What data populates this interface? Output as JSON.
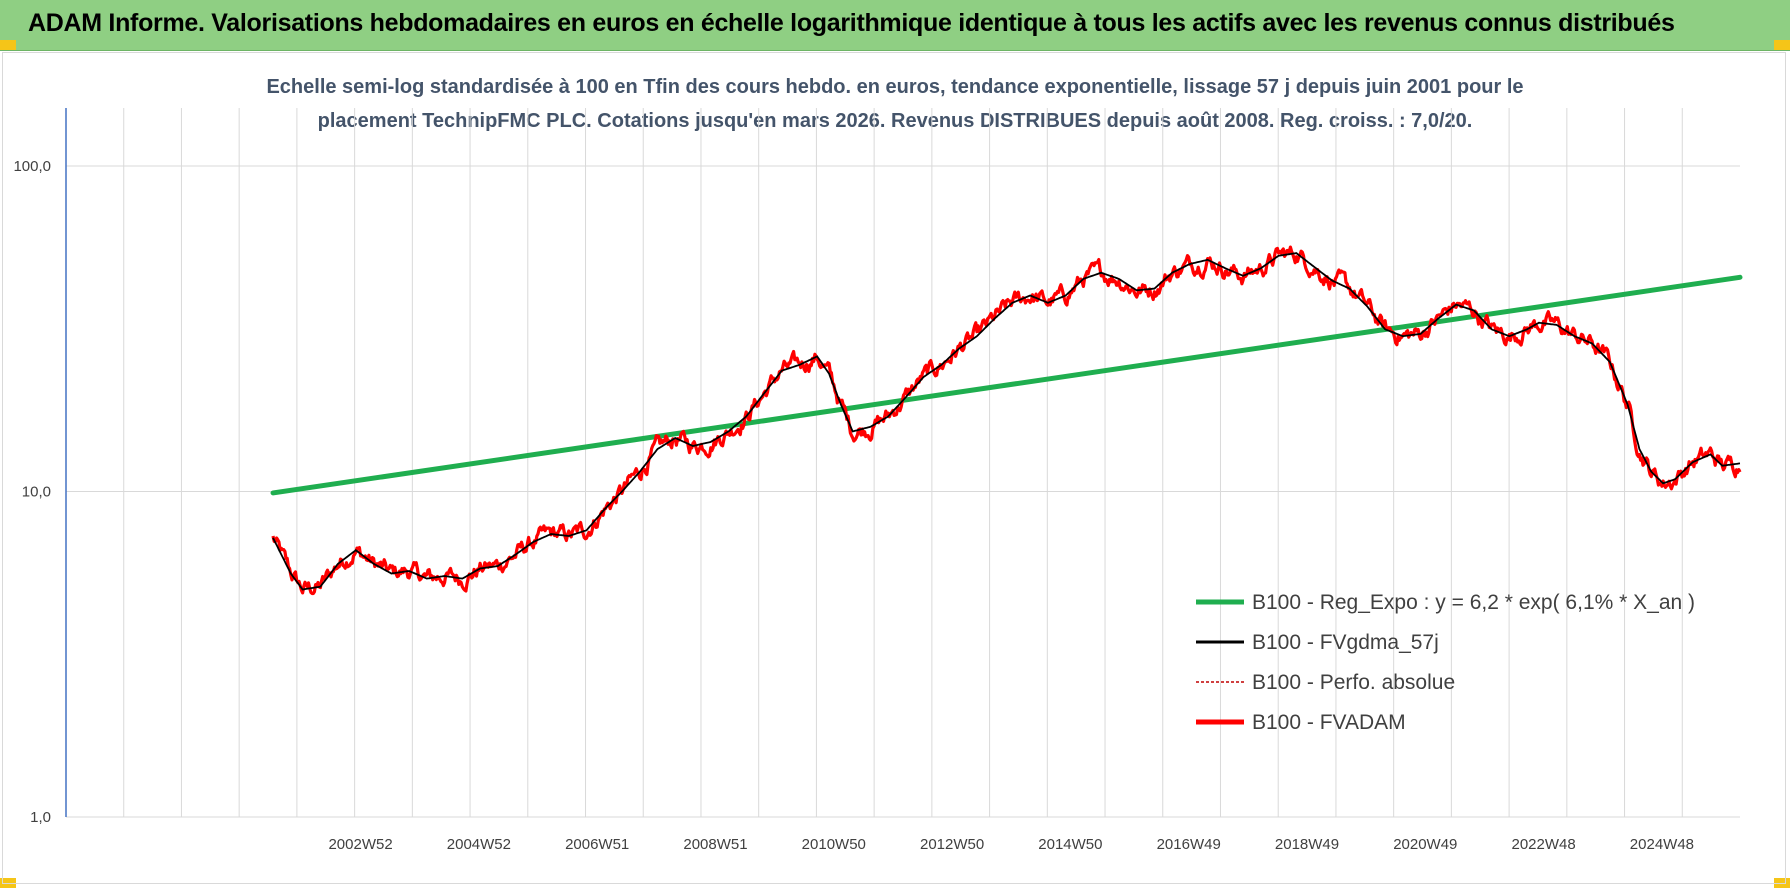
{
  "header": {
    "title": "ADAM Informe. Valorisations hebdomadaires en euros en échelle logarithmique identique à tous les actifs avec les revenus connus distribués"
  },
  "subtitle": {
    "line1": "Echelle semi-log standardisée à 100 en Tfin des cours hebdo. en euros, tendance exponentielle, lissage 57 j depuis juin 2001 pour le",
    "line2": "placement TechnipFMC PLC. Cotations jusqu'en mars 2026. Revenus DISTRIBUES depuis août 2008. Reg. croiss. : 7,0/20."
  },
  "colors": {
    "header_bg": "#8fcf83",
    "trend": "#1fae4f",
    "smooth": "#000000",
    "perf": "#c00000",
    "adam": "#ff0000",
    "grid": "#d9d9d9",
    "axis": "#4472c4",
    "subtitle": "#44546a"
  },
  "chart_data": {
    "type": "line",
    "yscale": "log",
    "ylim": [
      1,
      200
    ],
    "xlim": [
      1998.0,
      2026.3
    ],
    "y_ticks": [
      "1,0",
      "10,0",
      "100,0"
    ],
    "x_ticks": [
      "2002W52",
      "2004W52",
      "2006W51",
      "2008W51",
      "2010W50",
      "2012W50",
      "2014W50",
      "2016W49",
      "2018W49",
      "2020W49",
      "2022W48",
      "2024W48"
    ],
    "legend_position": "right",
    "series": [
      {
        "name": "B100 - Reg_Expo : y = 6,2 * exp( 6,1% *  X_an )",
        "style": "trend",
        "points": [
          [
            2001.5,
            9.9
          ],
          [
            2026.3,
            45.5
          ]
        ]
      },
      {
        "name": "B100 - FVgdma_57j",
        "style": "smooth",
        "points": [
          [
            2001.5,
            7.2
          ],
          [
            2001.8,
            5.6
          ],
          [
            2002.0,
            5.0
          ],
          [
            2002.3,
            5.1
          ],
          [
            2002.6,
            6.0
          ],
          [
            2002.9,
            6.6
          ],
          [
            2003.2,
            6.0
          ],
          [
            2003.5,
            5.6
          ],
          [
            2003.8,
            5.7
          ],
          [
            2004.1,
            5.4
          ],
          [
            2004.4,
            5.5
          ],
          [
            2004.7,
            5.4
          ],
          [
            2005.0,
            5.8
          ],
          [
            2005.3,
            5.9
          ],
          [
            2005.6,
            6.4
          ],
          [
            2005.9,
            7.0
          ],
          [
            2006.2,
            7.4
          ],
          [
            2006.5,
            7.3
          ],
          [
            2006.8,
            7.6
          ],
          [
            2007.1,
            8.8
          ],
          [
            2007.4,
            10.0
          ],
          [
            2007.7,
            11.5
          ],
          [
            2008.0,
            13.5
          ],
          [
            2008.3,
            14.6
          ],
          [
            2008.6,
            13.8
          ],
          [
            2008.9,
            14.2
          ],
          [
            2009.2,
            15.3
          ],
          [
            2009.5,
            17.0
          ],
          [
            2009.8,
            20.0
          ],
          [
            2010.1,
            23.5
          ],
          [
            2010.4,
            24.5
          ],
          [
            2010.7,
            26.0
          ],
          [
            2010.9,
            23.0
          ],
          [
            2011.1,
            18.5
          ],
          [
            2011.3,
            15.3
          ],
          [
            2011.6,
            15.8
          ],
          [
            2011.9,
            17.0
          ],
          [
            2012.2,
            19.5
          ],
          [
            2012.5,
            22.5
          ],
          [
            2012.8,
            24.5
          ],
          [
            2013.1,
            27.5
          ],
          [
            2013.4,
            30.0
          ],
          [
            2013.7,
            34.0
          ],
          [
            2014.0,
            38.0
          ],
          [
            2014.3,
            40.0
          ],
          [
            2014.6,
            38.0
          ],
          [
            2014.9,
            40.0
          ],
          [
            2015.2,
            45.0
          ],
          [
            2015.5,
            47.0
          ],
          [
            2015.8,
            45.0
          ],
          [
            2016.1,
            41.5
          ],
          [
            2016.4,
            42.0
          ],
          [
            2016.7,
            47.0
          ],
          [
            2017.0,
            50.0
          ],
          [
            2017.3,
            51.5
          ],
          [
            2017.6,
            48.5
          ],
          [
            2017.9,
            46.0
          ],
          [
            2018.2,
            48.5
          ],
          [
            2018.5,
            53.0
          ],
          [
            2018.8,
            54.0
          ],
          [
            2019.1,
            49.0
          ],
          [
            2019.4,
            44.5
          ],
          [
            2019.7,
            42.0
          ],
          [
            2020.0,
            37.0
          ],
          [
            2020.3,
            31.5
          ],
          [
            2020.6,
            30.0
          ],
          [
            2020.9,
            30.5
          ],
          [
            2021.2,
            34.0
          ],
          [
            2021.5,
            37.5
          ],
          [
            2021.8,
            36.0
          ],
          [
            2022.1,
            31.5
          ],
          [
            2022.4,
            30.0
          ],
          [
            2022.7,
            31.5
          ],
          [
            2022.9,
            33.0
          ],
          [
            2023.2,
            32.5
          ],
          [
            2023.5,
            30.0
          ],
          [
            2023.8,
            28.5
          ],
          [
            2024.1,
            25.0
          ],
          [
            2024.4,
            18.5
          ],
          [
            2024.6,
            13.5
          ],
          [
            2024.8,
            11.5
          ],
          [
            2025.0,
            10.6
          ],
          [
            2025.2,
            10.9
          ],
          [
            2025.5,
            12.3
          ],
          [
            2025.8,
            13.0
          ],
          [
            2026.0,
            12.0
          ],
          [
            2026.3,
            12.2
          ]
        ]
      },
      {
        "name": "B100 - Perfo. absolue",
        "style": "perf",
        "points": []
      },
      {
        "name": "B100 - FVADAM",
        "style": "adam",
        "points": []
      }
    ]
  }
}
